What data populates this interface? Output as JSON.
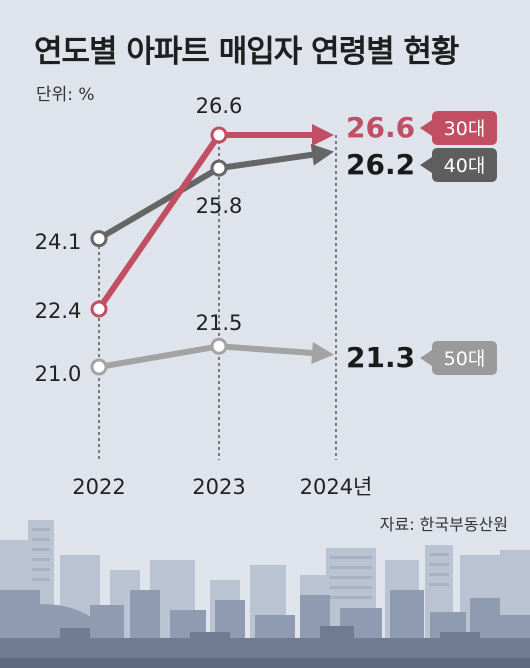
{
  "title": "연도별 아파트 매입자 연령별 현황",
  "unit_label": "단위: %",
  "source": "자료: 한국부동산원",
  "colors": {
    "s30": "#c14e62",
    "s40": "#666666",
    "s50": "#a3a3a3",
    "end_30": "#c14e62",
    "end_40": "#1a1a1a",
    "end_50": "#1a1a1a",
    "background": "#dfe4ec"
  },
  "chart_data": {
    "type": "line",
    "x": [
      "2022",
      "2023",
      "2024년"
    ],
    "ylim": [
      20,
      27.5
    ],
    "grid": false,
    "series": [
      {
        "name": "30대",
        "values": [
          22.4,
          26.6,
          26.6
        ],
        "point_labels": [
          "22.4",
          "26.6"
        ],
        "end_label": "26.6"
      },
      {
        "name": "40대",
        "values": [
          24.1,
          25.8,
          26.2
        ],
        "point_labels": [
          "24.1",
          "25.8"
        ],
        "end_label": "26.2"
      },
      {
        "name": "50대",
        "values": [
          21.0,
          21.5,
          21.3
        ],
        "point_labels": [
          "21.0",
          "21.5"
        ],
        "end_label": "21.3"
      }
    ]
  }
}
